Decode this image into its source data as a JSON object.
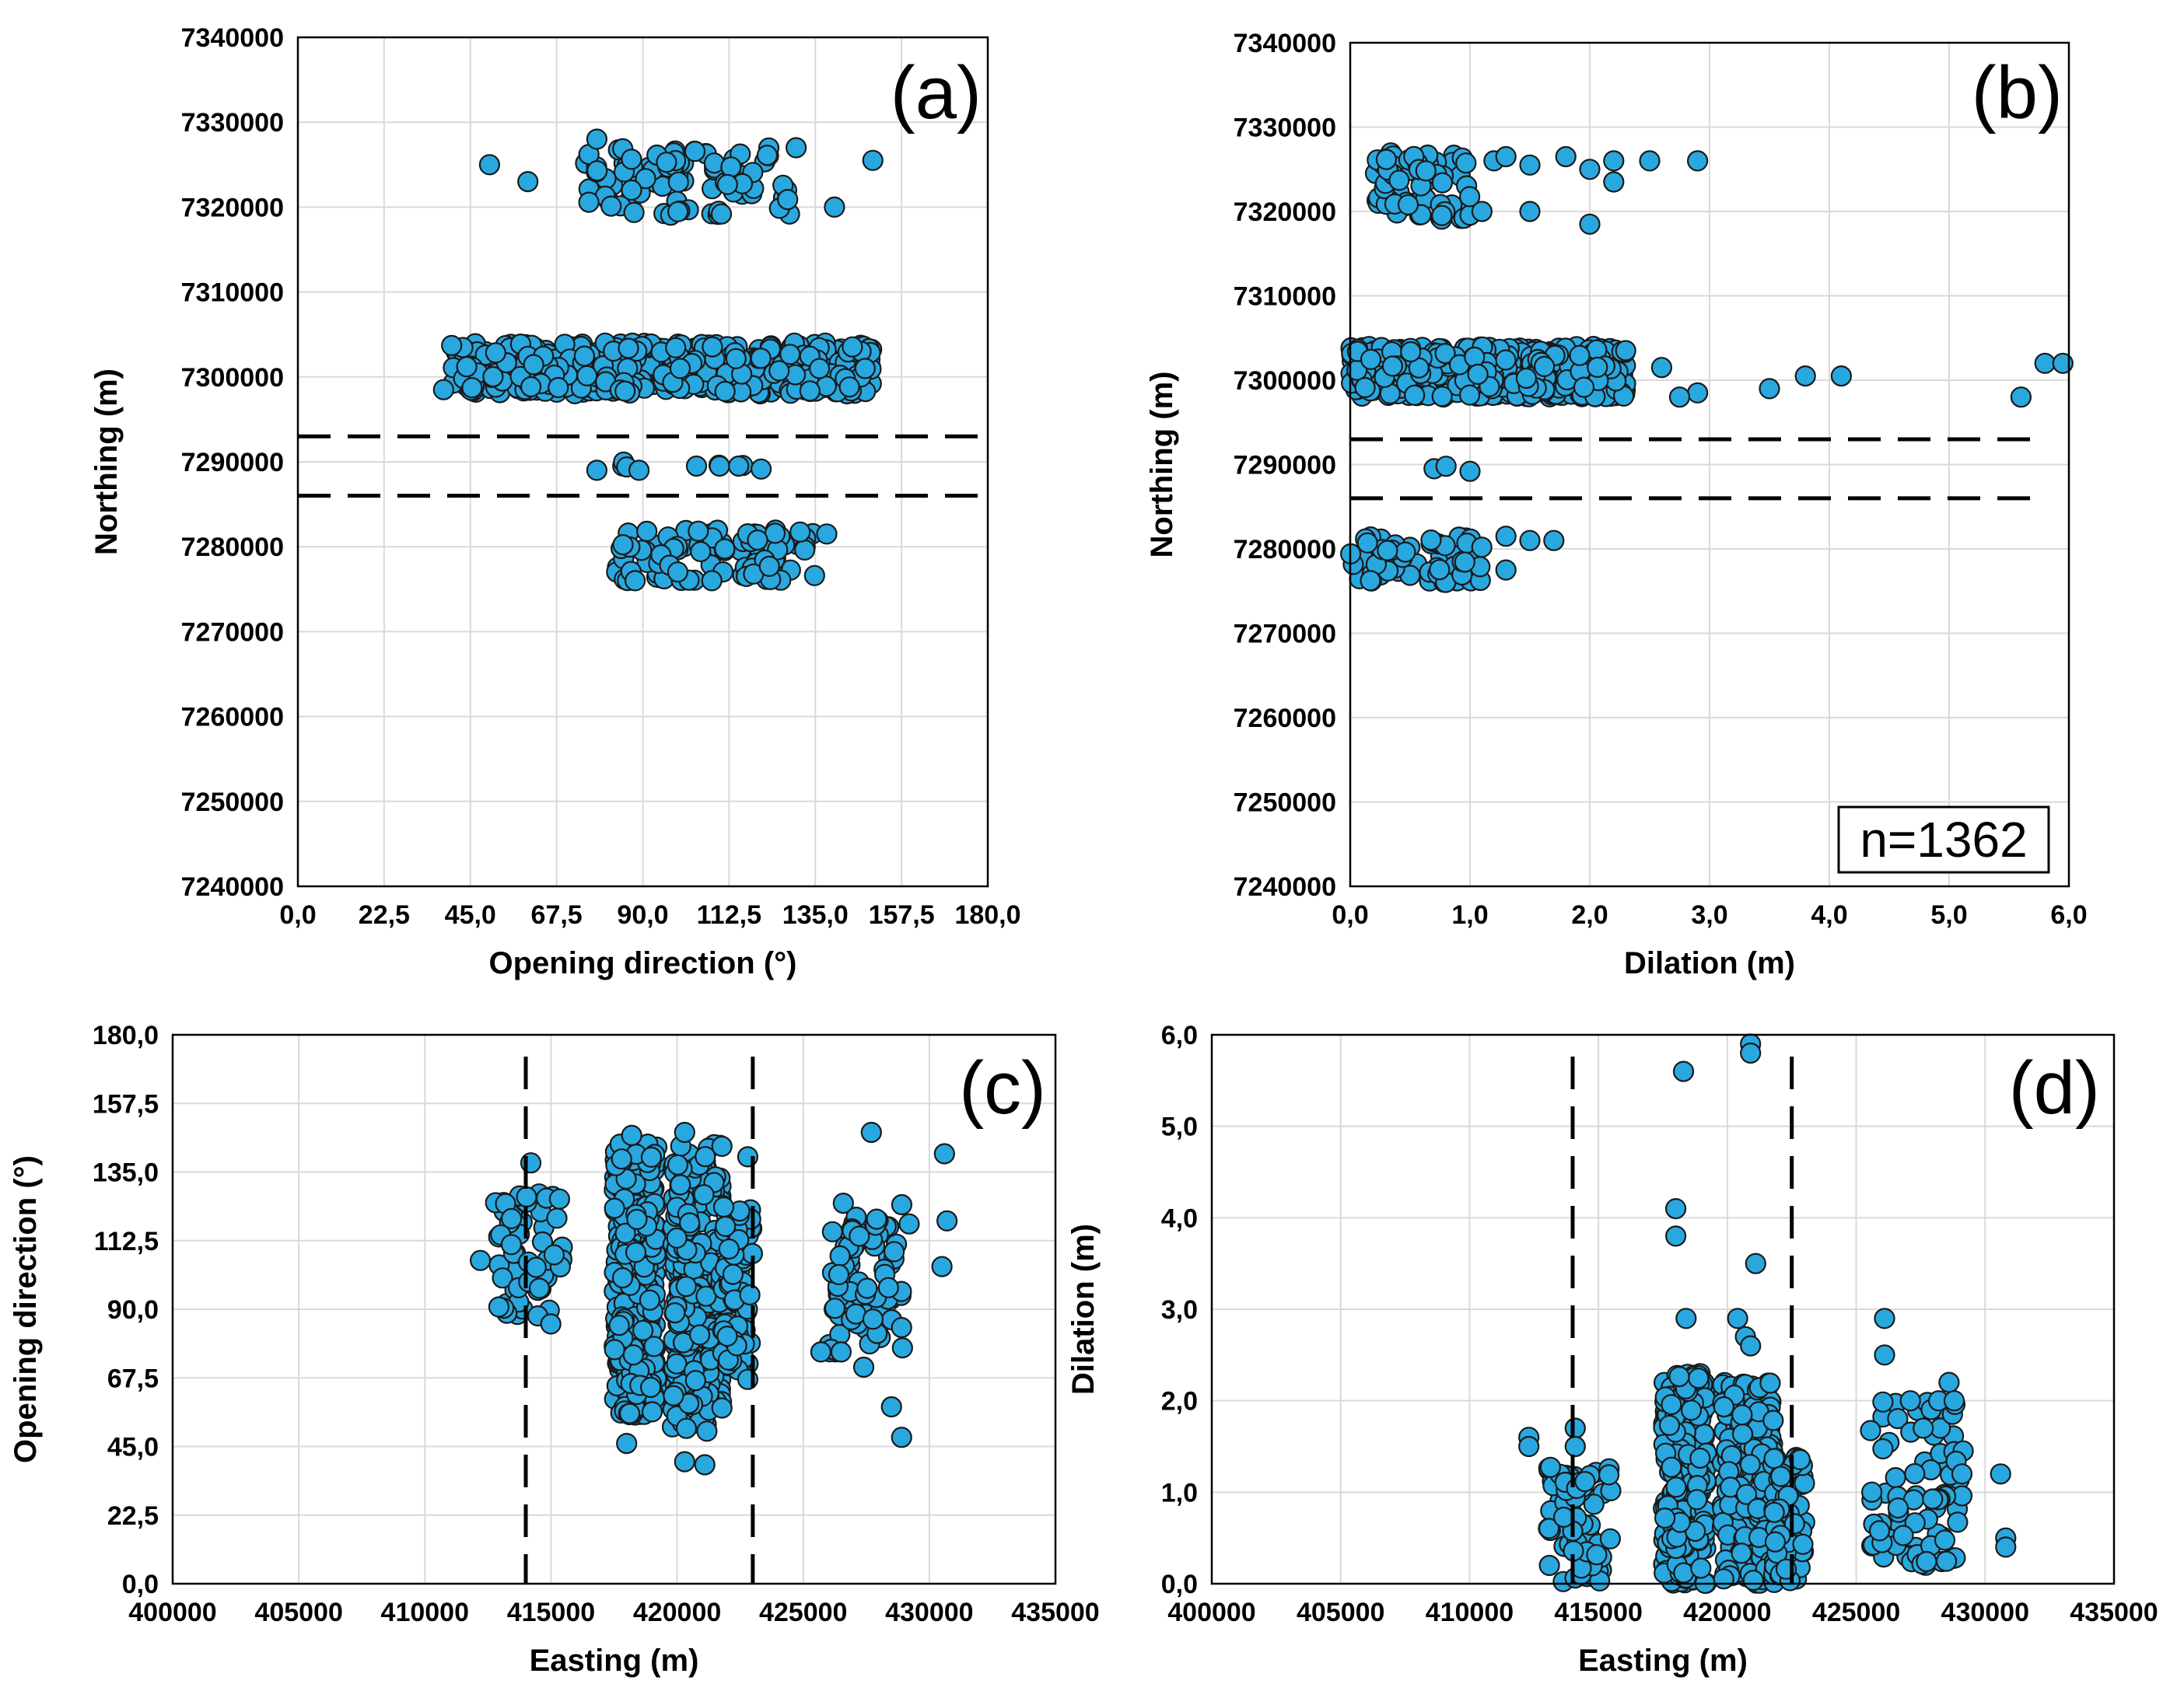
{
  "chart_data": [
    {
      "id": "a",
      "type": "scatter",
      "panel_label": "(a)",
      "xlabel": "Opening direction (°)",
      "ylabel": "Northing (m)",
      "xlim": [
        0,
        180
      ],
      "ylim": [
        7240000,
        7340000
      ],
      "xticks": [
        "0,0",
        "22,5",
        "45,0",
        "67,5",
        "90,0",
        "112,5",
        "135,0",
        "157,5",
        "180,0"
      ],
      "yticks": [
        "7240000",
        "7250000",
        "7260000",
        "7270000",
        "7280000",
        "7290000",
        "7300000",
        "7310000",
        "7320000",
        "7330000",
        "7340000"
      ],
      "dashed_lines": {
        "orientation": "horizontal",
        "values": [
          7293000,
          7286000
        ]
      },
      "marker_color": "#29a8e0",
      "clusters": [
        {
          "xmin": 75,
          "xmax": 130,
          "ymin": 7319000,
          "ymax": 7327000,
          "n": 90
        },
        {
          "xmin": 40,
          "xmax": 150,
          "ymin": 7298000,
          "ymax": 7304000,
          "n": 520
        },
        {
          "xmin": 80,
          "xmax": 125,
          "ymin": 7289000,
          "ymax": 7290000,
          "n": 6
        },
        {
          "xmin": 83,
          "xmax": 135,
          "ymin": 7276000,
          "ymax": 7282000,
          "n": 90
        }
      ],
      "points": [
        [
          78,
          7328000
        ],
        [
          50,
          7325000
        ],
        [
          60,
          7323000
        ],
        [
          140,
          7320000
        ],
        [
          150,
          7325500
        ],
        [
          130,
          7327000
        ],
        [
          38,
          7298500
        ],
        [
          148,
          7301000
        ],
        [
          78,
          7289000
        ],
        [
          89,
          7289000
        ],
        [
          104,
          7289500
        ],
        [
          110,
          7289500
        ],
        [
          115,
          7289500
        ],
        [
          138,
          7281500
        ],
        [
          88,
          7276000
        ],
        [
          108,
          7276000
        ]
      ]
    },
    {
      "id": "b",
      "type": "scatter",
      "panel_label": "(b)",
      "annotation": "n=1362",
      "xlabel": "Dilation (m)",
      "ylabel": "Northing (m)",
      "xlim": [
        0,
        6
      ],
      "ylim": [
        7240000,
        7340000
      ],
      "xticks": [
        "0,0",
        "1,0",
        "2,0",
        "3,0",
        "4,0",
        "5,0",
        "6,0"
      ],
      "yticks": [
        "7240000",
        "7250000",
        "7260000",
        "7270000",
        "7280000",
        "7290000",
        "7300000",
        "7310000",
        "7320000",
        "7330000",
        "7340000"
      ],
      "dashed_lines": {
        "orientation": "horizontal",
        "values": [
          7293000,
          7286000
        ]
      },
      "marker_color": "#29a8e0",
      "clusters": [
        {
          "xmin": 0.2,
          "xmax": 1.0,
          "ymin": 7319000,
          "ymax": 7327000,
          "n": 70
        },
        {
          "xmin": 0.0,
          "xmax": 2.3,
          "ymin": 7298000,
          "ymax": 7304000,
          "n": 520
        },
        {
          "xmin": 0.0,
          "xmax": 1.1,
          "ymin": 7276000,
          "ymax": 7281500,
          "n": 70
        }
      ],
      "points": [
        [
          1.2,
          7326000
        ],
        [
          1.3,
          7326500
        ],
        [
          1.5,
          7325500
        ],
        [
          1.8,
          7326500
        ],
        [
          2.0,
          7325000
        ],
        [
          2.2,
          7326000
        ],
        [
          2.5,
          7326000
        ],
        [
          2.9,
          7326000
        ],
        [
          1.5,
          7320000
        ],
        [
          2.0,
          7318500
        ],
        [
          2.2,
          7323500
        ],
        [
          1.1,
          7320000
        ],
        [
          2.3,
          7303500
        ],
        [
          2.6,
          7301500
        ],
        [
          2.9,
          7298500
        ],
        [
          3.5,
          7299000
        ],
        [
          3.8,
          7300500
        ],
        [
          4.1,
          7300500
        ],
        [
          5.6,
          7298000
        ],
        [
          5.8,
          7302000
        ],
        [
          5.95,
          7302000
        ],
        [
          2.75,
          7298000
        ],
        [
          0.7,
          7289500
        ],
        [
          0.8,
          7289800
        ],
        [
          1.0,
          7289200
        ],
        [
          1.3,
          7281500
        ],
        [
          1.5,
          7281000
        ],
        [
          1.7,
          7281000
        ],
        [
          1.3,
          7277500
        ]
      ]
    },
    {
      "id": "c",
      "type": "scatter",
      "panel_label": "(c)",
      "xlabel": "Easting (m)",
      "ylabel": "Opening direction (°)",
      "xlim": [
        400000,
        435000
      ],
      "ylim": [
        0,
        180
      ],
      "xticks": [
        "400000",
        "405000",
        "410000",
        "415000",
        "420000",
        "425000",
        "430000",
        "435000"
      ],
      "yticks": [
        "0,0",
        "22,5",
        "45,0",
        "67,5",
        "90,0",
        "112,5",
        "135,0",
        "157,5",
        "180,0"
      ],
      "dashed_lines": {
        "orientation": "vertical",
        "values": [
          414000,
          423000
        ]
      },
      "marker_color": "#29a8e0",
      "clusters": [
        {
          "xmin": 412800,
          "xmax": 415500,
          "ymin": 85,
          "ymax": 128,
          "n": 60
        },
        {
          "xmin": 417500,
          "xmax": 419200,
          "ymin": 55,
          "ymax": 145,
          "n": 320
        },
        {
          "xmin": 419800,
          "xmax": 421800,
          "ymin": 50,
          "ymax": 145,
          "n": 260
        },
        {
          "xmin": 421800,
          "xmax": 423000,
          "ymin": 70,
          "ymax": 125,
          "n": 80
        },
        {
          "xmin": 426000,
          "xmax": 429000,
          "ymin": 75,
          "ymax": 125,
          "n": 80
        }
      ],
      "points": [
        [
          412200,
          106
        ],
        [
          414200,
          138
        ],
        [
          418200,
          147
        ],
        [
          420300,
          148
        ],
        [
          418000,
          46
        ],
        [
          420300,
          40
        ],
        [
          421100,
          39
        ],
        [
          422800,
          140
        ],
        [
          422800,
          67
        ],
        [
          425700,
          76
        ],
        [
          426500,
          76
        ],
        [
          427400,
          71
        ],
        [
          427700,
          148
        ],
        [
          428500,
          58
        ],
        [
          428900,
          48
        ],
        [
          430600,
          141
        ],
        [
          430700,
          119
        ],
        [
          430500,
          104
        ],
        [
          429200,
          118
        ],
        [
          428900,
          84
        ]
      ]
    },
    {
      "id": "d",
      "type": "scatter",
      "panel_label": "(d)",
      "xlabel": "Easting (m)",
      "ylabel": "Dilation (m)",
      "xlim": [
        400000,
        435000
      ],
      "ylim": [
        0,
        6
      ],
      "xticks": [
        "400000",
        "405000",
        "410000",
        "415000",
        "420000",
        "425000",
        "430000",
        "435000"
      ],
      "yticks": [
        "0,0",
        "1,0",
        "2,0",
        "3,0",
        "4,0",
        "5,0",
        "6,0"
      ],
      "dashed_lines": {
        "orientation": "vertical",
        "values": [
          414000,
          422500
        ]
      },
      "marker_color": "#29a8e0",
      "clusters": [
        {
          "xmin": 413000,
          "xmax": 415500,
          "ymin": 0.0,
          "ymax": 1.3,
          "n": 70
        },
        {
          "xmin": 417500,
          "xmax": 419200,
          "ymin": 0.0,
          "ymax": 2.3,
          "n": 320
        },
        {
          "xmin": 419800,
          "xmax": 421800,
          "ymin": 0.0,
          "ymax": 2.2,
          "n": 260
        },
        {
          "xmin": 421800,
          "xmax": 423000,
          "ymin": 0.0,
          "ymax": 1.4,
          "n": 80
        },
        {
          "xmin": 425500,
          "xmax": 429200,
          "ymin": 0.2,
          "ymax": 2.0,
          "n": 80
        }
      ],
      "points": [
        [
          412300,
          1.6
        ],
        [
          412300,
          1.5
        ],
        [
          414100,
          1.7
        ],
        [
          414100,
          1.5
        ],
        [
          418000,
          4.1
        ],
        [
          418000,
          3.8
        ],
        [
          418300,
          5.6
        ],
        [
          418400,
          2.9
        ],
        [
          420400,
          2.9
        ],
        [
          420900,
          5.9
        ],
        [
          420900,
          5.8
        ],
        [
          421100,
          3.5
        ],
        [
          420700,
          2.7
        ],
        [
          420900,
          2.6
        ],
        [
          426100,
          2.9
        ],
        [
          426100,
          2.5
        ],
        [
          427100,
          2.0
        ],
        [
          427600,
          1.7
        ],
        [
          428200,
          2.0
        ],
        [
          428600,
          2.2
        ],
        [
          428800,
          2.0
        ],
        [
          429100,
          1.2
        ],
        [
          430600,
          1.2
        ],
        [
          430800,
          0.5
        ],
        [
          430800,
          0.4
        ]
      ]
    }
  ]
}
